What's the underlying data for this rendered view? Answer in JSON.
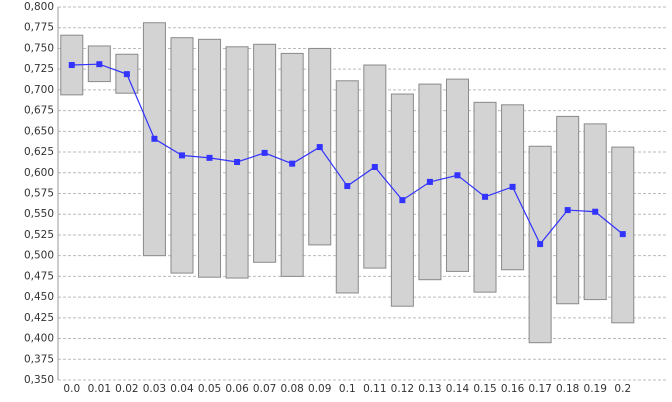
{
  "chart_data": {
    "type": "range-line",
    "categories": [
      "0.0",
      "0.01",
      "0.02",
      "0.03",
      "0.04",
      "0.05",
      "0.06",
      "0.07",
      "0.08",
      "0.09",
      "0.1",
      "0.11",
      "0.12",
      "0.13",
      "0.14",
      "0.15",
      "0.16",
      "0.17",
      "0.18",
      "0.19",
      "0.2"
    ],
    "values": [
      0.73,
      0.731,
      0.719,
      0.641,
      0.621,
      0.618,
      0.613,
      0.624,
      0.611,
      0.631,
      0.584,
      0.607,
      0.567,
      0.589,
      0.597,
      0.571,
      0.583,
      0.514,
      0.555,
      0.553,
      0.526
    ],
    "low": [
      0.694,
      0.71,
      0.696,
      0.5,
      0.479,
      0.474,
      0.473,
      0.492,
      0.475,
      0.513,
      0.455,
      0.485,
      0.439,
      0.471,
      0.481,
      0.456,
      0.483,
      0.395,
      0.442,
      0.447,
      0.419
    ],
    "high": [
      0.766,
      0.753,
      0.743,
      0.781,
      0.763,
      0.761,
      0.752,
      0.755,
      0.744,
      0.75,
      0.711,
      0.73,
      0.695,
      0.707,
      0.713,
      0.685,
      0.682,
      0.632,
      0.668,
      0.659,
      0.631
    ],
    "color": "#3333ff",
    "range_color": "#d3d3d3",
    "ylim": [
      0.35,
      0.8
    ],
    "yticks": [
      {
        "value": 0.35,
        "label": "0,350"
      },
      {
        "value": 0.375,
        "label": "0,375"
      },
      {
        "value": 0.4,
        "label": "0,400"
      },
      {
        "value": 0.425,
        "label": "0,425"
      },
      {
        "value": 0.45,
        "label": "0,450"
      },
      {
        "value": 0.475,
        "label": "0,475"
      },
      {
        "value": 0.5,
        "label": "0,500"
      },
      {
        "value": 0.525,
        "label": "0,525"
      },
      {
        "value": 0.55,
        "label": "0,550"
      },
      {
        "value": 0.575,
        "label": "0,575"
      },
      {
        "value": 0.6,
        "label": "0,600"
      },
      {
        "value": 0.625,
        "label": "0,625"
      },
      {
        "value": 0.65,
        "label": "0,650"
      },
      {
        "value": 0.675,
        "label": "0,675"
      },
      {
        "value": 0.7,
        "label": "0,700"
      },
      {
        "value": 0.725,
        "label": "0,725"
      },
      {
        "value": 0.75,
        "label": "0,750"
      },
      {
        "value": 0.775,
        "label": "0,775"
      },
      {
        "value": 0.8,
        "label": "0,800"
      }
    ],
    "grid": true
  }
}
